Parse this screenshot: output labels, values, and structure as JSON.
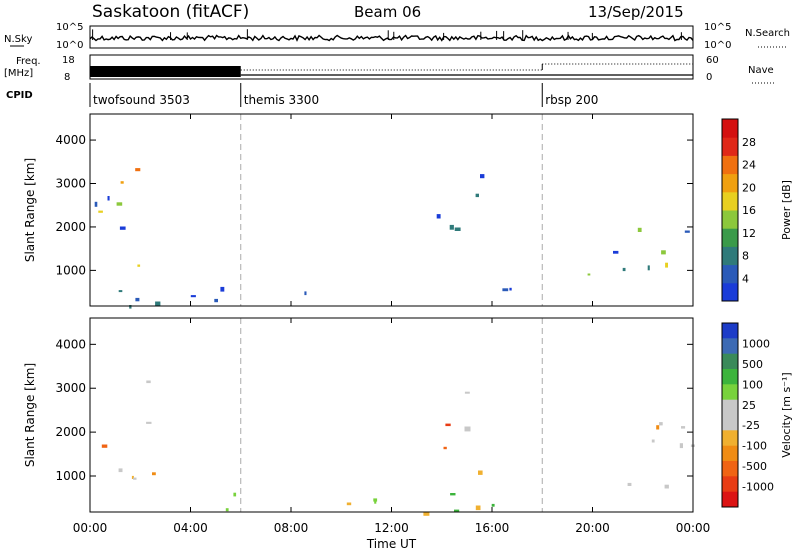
{
  "header": {
    "station": "Saskatoon (fitACF)",
    "beam": "Beam 06",
    "date": "13/Sep/2015"
  },
  "strip_labels": {
    "nsky": "N.Sky",
    "nsky_top": "10^5",
    "nsky_bottom": "10^0",
    "freq_line1": "Freq.",
    "freq_line2": "[MHz]",
    "freq_top": "18",
    "freq_bottom": "8",
    "right_nsky_top": "10^5",
    "right_nsky_bottom": "10^0",
    "nsearch": "N.Search",
    "nave_top": "60",
    "nave_bottom": "0",
    "nave": "Nave",
    "cpid": "CPID"
  },
  "cpid_segments": [
    {
      "label": "twofsound 3503",
      "start_hour": 0
    },
    {
      "label": "themis 3300",
      "start_hour": 6
    },
    {
      "label": "rbsp 200",
      "start_hour": 18
    }
  ],
  "chart_data": [
    {
      "type": "heatmap",
      "title": "Power",
      "ylabel": "Slant Range [km]",
      "xlabel": "",
      "xlim": [
        0,
        24
      ],
      "ylim": [
        180,
        4600
      ],
      "yticks": [
        1000,
        2000,
        3000,
        4000
      ],
      "colorbar_label": "Power [dB]",
      "colorbar_ticks": [
        "4",
        "8",
        "12",
        "16",
        "20",
        "24",
        "28"
      ],
      "colorbar_colors": [
        "#1a3cd8",
        "#2a5ab8",
        "#2f7a7a",
        "#3a9a4a",
        "#8cc83c",
        "#e8d020",
        "#f0a010",
        "#f07010",
        "#e02818",
        "#d41010"
      ],
      "features": [
        {
          "t0": 0.1,
          "t1": 2.8,
          "r0": 900,
          "r1": 3400,
          "level": "mixed-high"
        },
        {
          "t0": 1.5,
          "t1": 2.9,
          "r0": 900,
          "r1": 1800,
          "level": "high"
        },
        {
          "t0": 0.2,
          "t1": 17.8,
          "r0": 180,
          "r1": 700,
          "level": "low"
        },
        {
          "t0": 13.5,
          "t1": 15.6,
          "r0": 1100,
          "r1": 3300,
          "level": "low"
        },
        {
          "t0": 19.5,
          "t1": 24,
          "r0": 700,
          "r1": 2300,
          "level": "mixed"
        }
      ]
    },
    {
      "type": "heatmap",
      "title": "Velocity",
      "ylabel": "Slant Range [km]",
      "xlabel": "Time UT",
      "xlim": [
        0,
        24
      ],
      "ylim": [
        180,
        4600
      ],
      "yticks": [
        1000,
        2000,
        3000,
        4000
      ],
      "xtick_labels": [
        "00:00",
        "04:00",
        "08:00",
        "12:00",
        "16:00",
        "20:00",
        "00:00"
      ],
      "colorbar_label": "Velocity [m s⁻¹]",
      "colorbar_ticks": [
        "1000",
        "500",
        "100",
        "25",
        "-25",
        "-100",
        "-500",
        "-1000"
      ],
      "colorbar_colors": [
        "#1c3cc8",
        "#3c6ab4",
        "#3a8a5a",
        "#3cb43c",
        "#78d23c",
        "#c8c8c8",
        "#c8c8c8",
        "#f0b030",
        "#f08c14",
        "#f06414",
        "#e83c14",
        "#dc1414"
      ],
      "features": [
        {
          "t0": 0.1,
          "t1": 2.8,
          "r0": 900,
          "r1": 3400,
          "level": "grey-orange"
        },
        {
          "t0": 0.2,
          "t1": 17.8,
          "r0": 180,
          "r1": 700,
          "level": "green"
        },
        {
          "t0": 13.5,
          "t1": 15.6,
          "r0": 1100,
          "r1": 3300,
          "level": "grey-orange"
        },
        {
          "t0": 19.5,
          "t1": 24,
          "r0": 700,
          "r1": 2300,
          "level": "grey"
        }
      ]
    }
  ]
}
